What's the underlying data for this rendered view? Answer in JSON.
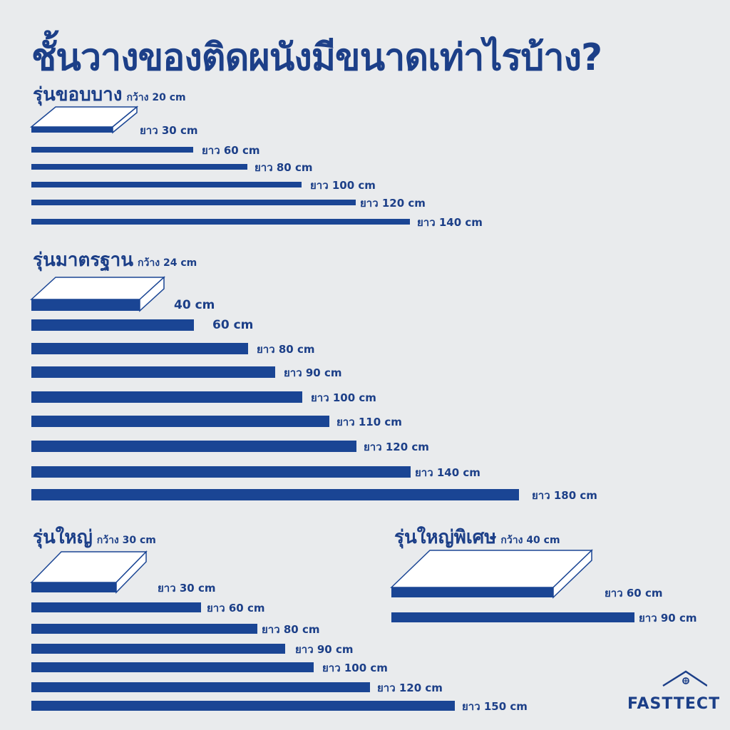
{
  "title": "ชั้นวางของติดผนังมีขนาดเท่าไรบ้าง?",
  "colors": {
    "bar": "#1a4594",
    "text": "#1c3f88",
    "background": "#e9ebed"
  },
  "chart_data": [
    {
      "type": "bar",
      "orientation": "horizontal",
      "title": "รุ่นขอบบาง",
      "subtitle": "กว้าง 20 cm",
      "categories": [
        "ยาว 30 cm",
        "ยาว 60 cm",
        "ยาว 80 cm",
        "ยาว 100 cm",
        "ยาว 120 cm",
        "ยาว 140 cm"
      ],
      "values": [
        30,
        60,
        80,
        100,
        120,
        140
      ],
      "unit": "cm",
      "thickness": "thin"
    },
    {
      "type": "bar",
      "orientation": "horizontal",
      "title": "รุ่นมาตรฐาน",
      "subtitle": "กว้าง 24 cm",
      "categories": [
        "40 cm",
        "60 cm",
        "ยาว 80 cm",
        "ยาว 90 cm",
        "ยาว 100 cm",
        "ยาว 110 cm",
        "ยาว 120 cm",
        "ยาว 140 cm",
        "ยาว 180 cm"
      ],
      "values": [
        40,
        60,
        80,
        90,
        100,
        110,
        120,
        140,
        180
      ],
      "unit": "cm",
      "thickness": "thick"
    },
    {
      "type": "bar",
      "orientation": "horizontal",
      "title": "รุ่นใหญ่",
      "subtitle": "กว้าง 30 cm",
      "categories": [
        "ยาว 30 cm",
        "ยาว 60 cm",
        "ยาว 80 cm",
        "ยาว 90 cm",
        "ยาว 100 cm",
        "ยาว 120 cm",
        "ยาว 150 cm"
      ],
      "values": [
        30,
        60,
        80,
        90,
        100,
        120,
        150
      ],
      "unit": "cm",
      "thickness": "medium"
    },
    {
      "type": "bar",
      "orientation": "horizontal",
      "title": "รุ่นใหญ่พิเศษ",
      "subtitle": "กว้าง 40 cm",
      "categories": [
        "ยาว 60 cm",
        "ยาว 90 cm"
      ],
      "values": [
        60,
        90
      ],
      "unit": "cm",
      "thickness": "medium"
    }
  ],
  "logo": {
    "text": "FASTTECT",
    "icon": "house-icon"
  }
}
